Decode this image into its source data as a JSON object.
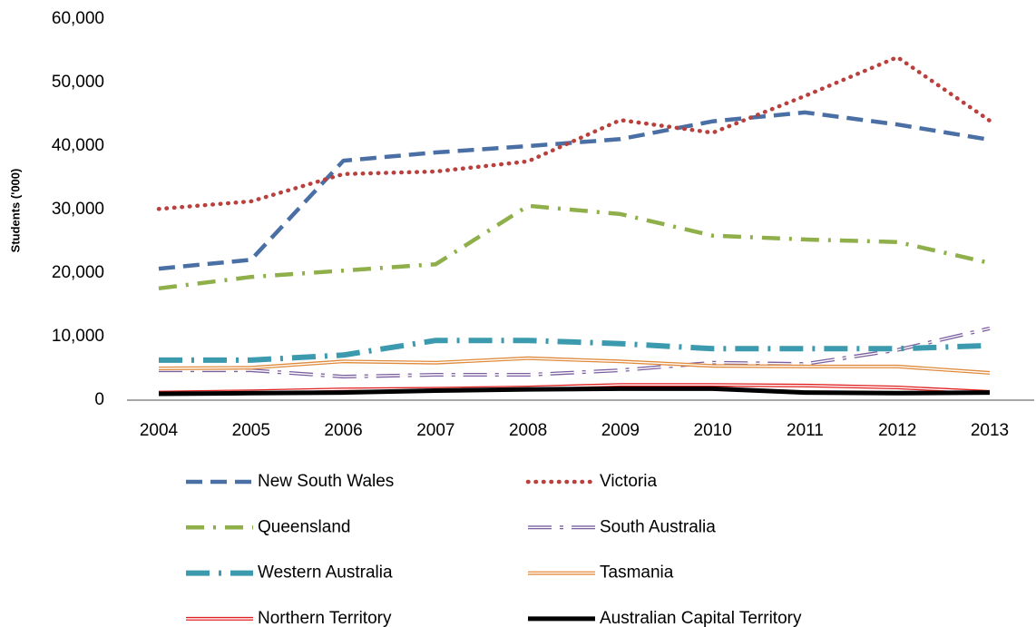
{
  "chart_data": {
    "type": "line",
    "y_label": "Students ('000)",
    "x": [
      "2004",
      "2005",
      "2006",
      "2007",
      "2008",
      "2009",
      "2010",
      "2011",
      "2012",
      "2013"
    ],
    "ylim": [
      0,
      60000
    ],
    "yticks": [
      {
        "value": 0,
        "label": "0"
      },
      {
        "value": 10000,
        "label": "10,000"
      },
      {
        "value": 20000,
        "label": "20,000"
      },
      {
        "value": 30000,
        "label": "30,000"
      },
      {
        "value": 40000,
        "label": "40,000"
      },
      {
        "value": 50000,
        "label": "50,000"
      },
      {
        "value": 60000,
        "label": "60,000"
      }
    ],
    "grid": false,
    "legend": "bottom",
    "series": [
      {
        "name": "New South Wales",
        "color": "#4a6fa5",
        "line_style": "dash",
        "values": [
          20700,
          22100,
          37700,
          39000,
          40000,
          41100,
          43900,
          45300,
          43400,
          41000
        ]
      },
      {
        "name": "Victoria",
        "color": "#b9403d",
        "line_style": "dot",
        "values": [
          30100,
          31300,
          35600,
          36000,
          37600,
          44100,
          42100,
          47900,
          54000,
          44000
        ]
      },
      {
        "name": "Queensland",
        "color": "#8faf4a",
        "line_style": "dash-dot",
        "values": [
          17600,
          19400,
          20400,
          21400,
          30600,
          29300,
          25900,
          25300,
          24900,
          21600
        ]
      },
      {
        "name": "South Australia",
        "color": "#7b5fa0",
        "line_style": "long-dash-dot",
        "values": [
          4700,
          4700,
          3700,
          4000,
          4000,
          4700,
          5900,
          5700,
          7900,
          11300
        ]
      },
      {
        "name": "Western Australia",
        "color": "#3c9aae",
        "line_style": "thick-dash-dot",
        "values": [
          6300,
          6300,
          7100,
          9400,
          9400,
          8900,
          8100,
          8100,
          8100,
          8600
        ]
      },
      {
        "name": "Tasmania",
        "color": "#e08a3c",
        "line_style": "double",
        "values": [
          5000,
          5100,
          6100,
          5900,
          6600,
          6100,
          5400,
          5300,
          5300,
          4300
        ]
      },
      {
        "name": "Northern Territory",
        "color": "#e02020",
        "line_style": "double",
        "values": [
          1200,
          1400,
          1700,
          1800,
          2000,
          2400,
          2400,
          2300,
          2000,
          1300
        ]
      },
      {
        "name": "Australian Capital Territory",
        "color": "#000000",
        "line_style": "solid",
        "values": [
          1000,
          1100,
          1200,
          1500,
          1700,
          1800,
          1800,
          1200,
          1100,
          1200
        ]
      }
    ]
  }
}
